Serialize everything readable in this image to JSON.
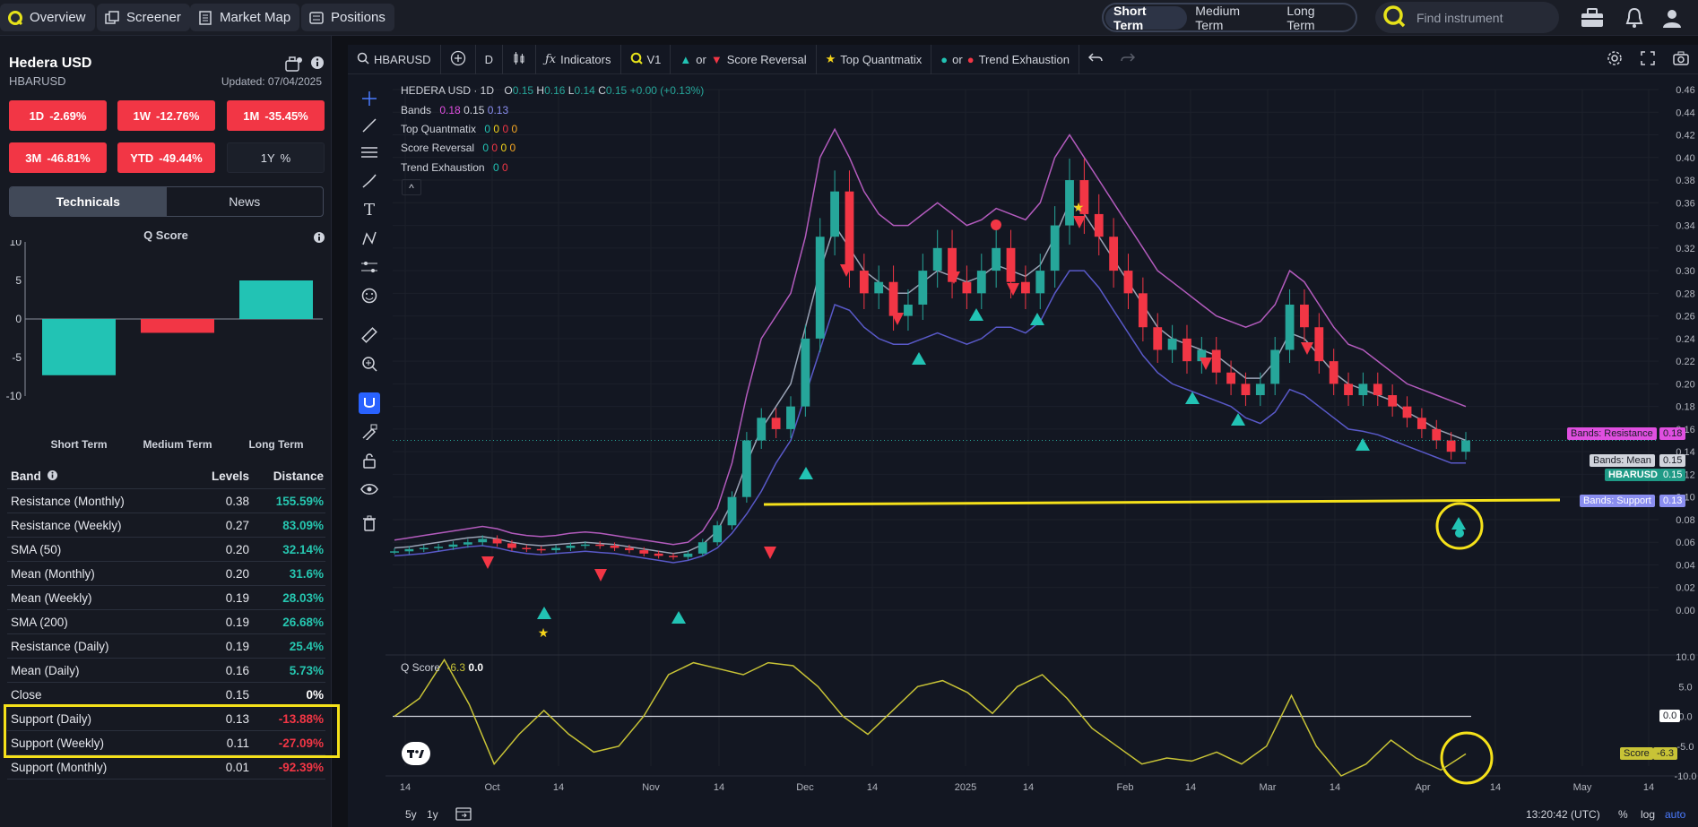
{
  "topbar": {
    "nav": [
      {
        "label": "Overview",
        "icon": "q-logo-icon"
      },
      {
        "label": "Screener",
        "icon": "screener-icon"
      },
      {
        "label": "Market Map",
        "icon": "document-icon"
      },
      {
        "label": "Positions",
        "icon": "positions-icon"
      }
    ],
    "terms": [
      "Short Term",
      "Medium Term",
      "Long Term"
    ],
    "active_term": "Short Term",
    "search_placeholder": "Find instrument"
  },
  "instrument": {
    "name": "Hedera USD",
    "ticker": "HBARUSD",
    "updated": "Updated: 07/04/2025"
  },
  "performance": [
    {
      "period": "1D",
      "value": "-2.69%"
    },
    {
      "period": "1W",
      "value": "-12.76%"
    },
    {
      "period": "1M",
      "value": "-35.45%"
    },
    {
      "period": "3M",
      "value": "-46.81%"
    },
    {
      "period": "YTD",
      "value": "-49.44%"
    },
    {
      "period": "1Y",
      "value": "%"
    }
  ],
  "panel_tabs": [
    "Technicals",
    "News"
  ],
  "qscore": {
    "title": "Q Score",
    "y_ticks": [
      "10",
      "5",
      "0",
      "-5",
      "-10"
    ],
    "bars": [
      {
        "label": "Short Term",
        "value": -7.3,
        "color": "#22c3b4"
      },
      {
        "label": "Medium Term",
        "value": -1.8,
        "color": "#f23645"
      },
      {
        "label": "Long Term",
        "value": 5.0,
        "color": "#22c3b4"
      }
    ]
  },
  "band_table": {
    "headers": [
      "Band",
      "Levels",
      "Distance"
    ],
    "rows": [
      {
        "band": "Resistance (Monthly)",
        "level": "0.38",
        "distance": "155.59%",
        "sign": "pos"
      },
      {
        "band": "Resistance (Weekly)",
        "level": "0.27",
        "distance": "83.09%",
        "sign": "pos"
      },
      {
        "band": "SMA (50)",
        "level": "0.20",
        "distance": "32.14%",
        "sign": "pos"
      },
      {
        "band": "Mean (Monthly)",
        "level": "0.20",
        "distance": "31.6%",
        "sign": "pos"
      },
      {
        "band": "Mean (Weekly)",
        "level": "0.19",
        "distance": "28.03%",
        "sign": "pos"
      },
      {
        "band": "SMA (200)",
        "level": "0.19",
        "distance": "26.68%",
        "sign": "pos"
      },
      {
        "band": "Resistance (Daily)",
        "level": "0.19",
        "distance": "25.4%",
        "sign": "pos"
      },
      {
        "band": "Mean (Daily)",
        "level": "0.16",
        "distance": "5.73%",
        "sign": "pos"
      },
      {
        "band": "Close",
        "level": "0.15",
        "distance": "0%",
        "sign": "zero"
      },
      {
        "band": "Support (Daily)",
        "level": "0.13",
        "distance": "-13.88%",
        "sign": "neg"
      },
      {
        "band": "Support (Weekly)",
        "level": "0.11",
        "distance": "-27.09%",
        "sign": "neg"
      },
      {
        "band": "Support (Monthly)",
        "level": "0.01",
        "distance": "-92.39%",
        "sign": "neg"
      }
    ]
  },
  "chart_toolbar": {
    "symbol": "HBARUSD",
    "interval": "D",
    "indicators": "Indicators",
    "version": "V1",
    "score_reversal": "Score Reversal",
    "top_quantmatix": "Top Quantmatix",
    "trend_exhaustion": "Trend Exhaustion",
    "or": "or"
  },
  "chart_legend": {
    "title": "HEDERA USD · 1D",
    "o_label": "O",
    "o": "0.15",
    "h_label": "H",
    "h": "0.16",
    "l_label": "L",
    "l": "0.14",
    "c_label": "C",
    "c": "0.15",
    "change": "+0.00 (+0.13%)",
    "bands_label": "Bands",
    "bands_vals": [
      "0.18",
      "0.15",
      "0.13"
    ],
    "tq_label": "Top Quantmatix",
    "sr_label": "Score Reversal",
    "te_label": "Trend Exhaustion",
    "zero": "0",
    "chevron": "^"
  },
  "price_tags": {
    "resistance_label": "Bands: Resistance",
    "resistance": "0.18",
    "mean_label": "Bands: Mean",
    "mean": "0.15",
    "ticker_label": "HBARUSD",
    "ticker_val": "0.15",
    "support_label": "Bands: Support",
    "support": "0.13",
    "score_label": "Score",
    "score": "-6.3",
    "zero_line": "0.0"
  },
  "qscore_pane": {
    "label": "Q Score",
    "value": "-6.3",
    "zero": "0.0",
    "y_ticks": [
      "10.0",
      "5.0",
      "0.0",
      "-5.0",
      "-10.0"
    ]
  },
  "bottom": {
    "ranges": [
      "5y",
      "1y"
    ],
    "time": "13:20:42 (UTC)",
    "pct": "%",
    "log": "log",
    "auto": "auto"
  },
  "chart_data": {
    "type": "line",
    "title": "HEDERA USD · 1D",
    "x_ticks": [
      "14",
      "Oct",
      "14",
      "Nov",
      "14",
      "Dec",
      "14",
      "2025",
      "14",
      "Feb",
      "14",
      "Mar",
      "14",
      "Apr",
      "14",
      "May",
      "14"
    ],
    "y_ticks": [
      "0.46",
      "0.44",
      "0.42",
      "0.40",
      "0.38",
      "0.36",
      "0.34",
      "0.32",
      "0.30",
      "0.28",
      "0.26",
      "0.24",
      "0.22",
      "0.20",
      "0.18",
      "0.16",
      "0.14",
      "0.12",
      "0.10",
      "0.08",
      "0.06",
      "0.04",
      "0.02",
      "0.00"
    ],
    "ylim": [
      0.0,
      0.46
    ],
    "series": [
      {
        "name": "Close",
        "color": "#26a69a",
        "values": [
          0.052,
          0.054,
          0.055,
          0.056,
          0.058,
          0.06,
          0.063,
          0.059,
          0.055,
          0.054,
          0.053,
          0.055,
          0.057,
          0.058,
          0.057,
          0.055,
          0.053,
          0.05,
          0.048,
          0.047,
          0.05,
          0.06,
          0.075,
          0.1,
          0.15,
          0.17,
          0.16,
          0.18,
          0.24,
          0.33,
          0.37,
          0.3,
          0.28,
          0.29,
          0.26,
          0.27,
          0.3,
          0.32,
          0.29,
          0.28,
          0.3,
          0.32,
          0.29,
          0.28,
          0.3,
          0.34,
          0.38,
          0.35,
          0.33,
          0.3,
          0.28,
          0.25,
          0.23,
          0.24,
          0.22,
          0.23,
          0.21,
          0.2,
          0.19,
          0.2,
          0.23,
          0.27,
          0.25,
          0.22,
          0.2,
          0.19,
          0.2,
          0.19,
          0.18,
          0.17,
          0.16,
          0.15,
          0.14,
          0.15
        ]
      },
      {
        "name": "Bands: Resistance",
        "color": "#b35bbd",
        "values": [
          0.062,
          0.064,
          0.066,
          0.068,
          0.07,
          0.072,
          0.074,
          0.072,
          0.068,
          0.066,
          0.065,
          0.066,
          0.068,
          0.069,
          0.068,
          0.066,
          0.064,
          0.062,
          0.06,
          0.058,
          0.06,
          0.07,
          0.09,
          0.13,
          0.19,
          0.24,
          0.26,
          0.28,
          0.33,
          0.4,
          0.425,
          0.4,
          0.37,
          0.35,
          0.34,
          0.34,
          0.35,
          0.36,
          0.35,
          0.34,
          0.345,
          0.355,
          0.35,
          0.345,
          0.36,
          0.4,
          0.42,
          0.4,
          0.38,
          0.36,
          0.34,
          0.32,
          0.3,
          0.29,
          0.28,
          0.27,
          0.26,
          0.255,
          0.25,
          0.255,
          0.27,
          0.3,
          0.29,
          0.27,
          0.25,
          0.235,
          0.23,
          0.22,
          0.21,
          0.2,
          0.195,
          0.19,
          0.185,
          0.18
        ]
      },
      {
        "name": "Bands: Mean",
        "color": "#9aa3b5",
        "values": [
          0.055,
          0.056,
          0.058,
          0.06,
          0.062,
          0.064,
          0.065,
          0.063,
          0.06,
          0.058,
          0.057,
          0.058,
          0.059,
          0.06,
          0.059,
          0.058,
          0.056,
          0.054,
          0.052,
          0.05,
          0.052,
          0.058,
          0.07,
          0.095,
          0.13,
          0.16,
          0.18,
          0.2,
          0.25,
          0.3,
          0.34,
          0.32,
          0.3,
          0.29,
          0.28,
          0.28,
          0.29,
          0.3,
          0.295,
          0.29,
          0.295,
          0.305,
          0.3,
          0.295,
          0.305,
          0.33,
          0.36,
          0.35,
          0.33,
          0.31,
          0.29,
          0.27,
          0.25,
          0.24,
          0.235,
          0.23,
          0.225,
          0.215,
          0.205,
          0.205,
          0.22,
          0.245,
          0.24,
          0.225,
          0.21,
          0.2,
          0.195,
          0.19,
          0.185,
          0.175,
          0.168,
          0.16,
          0.155,
          0.15
        ]
      },
      {
        "name": "Bands: Support",
        "color": "#5959c8",
        "values": [
          0.048,
          0.049,
          0.05,
          0.052,
          0.054,
          0.056,
          0.057,
          0.055,
          0.052,
          0.05,
          0.049,
          0.05,
          0.051,
          0.052,
          0.051,
          0.05,
          0.048,
          0.046,
          0.044,
          0.042,
          0.044,
          0.048,
          0.055,
          0.068,
          0.085,
          0.105,
          0.13,
          0.15,
          0.19,
          0.23,
          0.27,
          0.265,
          0.25,
          0.24,
          0.235,
          0.235,
          0.24,
          0.245,
          0.24,
          0.235,
          0.24,
          0.25,
          0.25,
          0.245,
          0.255,
          0.28,
          0.3,
          0.3,
          0.285,
          0.265,
          0.245,
          0.225,
          0.21,
          0.2,
          0.195,
          0.19,
          0.185,
          0.18,
          0.17,
          0.165,
          0.175,
          0.195,
          0.19,
          0.18,
          0.17,
          0.16,
          0.158,
          0.155,
          0.15,
          0.145,
          0.14,
          0.135,
          0.13,
          0.13
        ]
      },
      {
        "name": "Q Score",
        "color": "#c8c336",
        "values": [
          0.0,
          3.0,
          9.5,
          2.0,
          -8.0,
          -3.0,
          1.0,
          -3.0,
          -6.0,
          -5.0,
          0.0,
          7.0,
          9.0,
          8.0,
          7.0,
          9.0,
          8.5,
          5.0,
          0.0,
          -3.0,
          1.0,
          5.0,
          6.0,
          4.0,
          0.5,
          5.0,
          7.0,
          3.0,
          -2.0,
          -5.0,
          -8.0,
          -7.0,
          -7.5,
          -6.0,
          -8.0,
          -5.0,
          3.5,
          -5.0,
          -10.0,
          -8.0,
          -4.0,
          -7.0,
          -9.0,
          -6.3
        ]
      }
    ]
  }
}
